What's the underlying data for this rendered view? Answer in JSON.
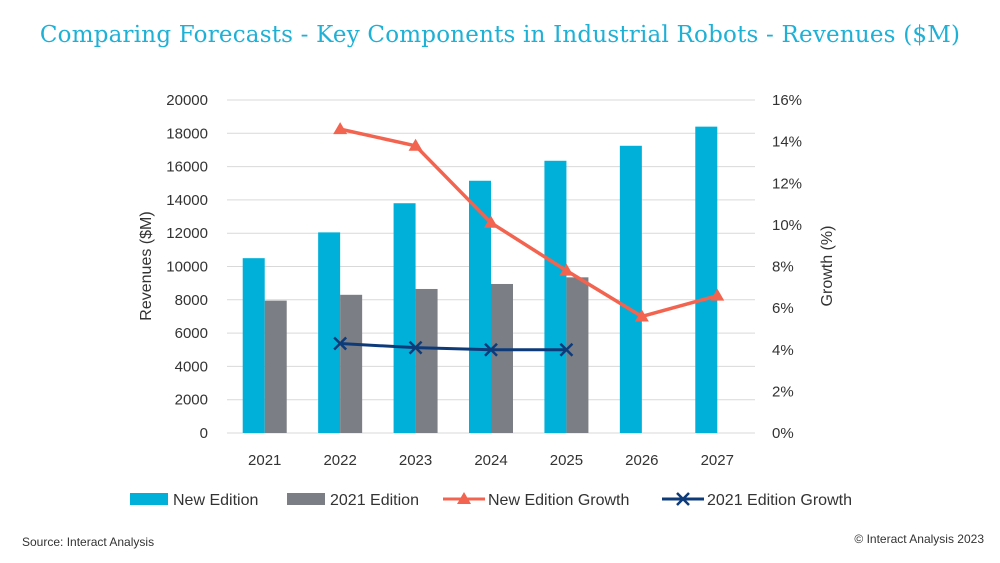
{
  "colors": {
    "title": "#1fb0d6",
    "new_edition": "#00b0d8",
    "edition_2021": "#7b7e84",
    "new_growth": "#f2644f",
    "growth_2021": "#0d3b7a",
    "grid": "#d9d9d9"
  },
  "chart_data": {
    "type": "bar",
    "title": "Comparing Forecasts - Key Components in Industrial Robots - Revenues ($M)",
    "categories": [
      "2021",
      "2022",
      "2023",
      "2024",
      "2025",
      "2026",
      "2027"
    ],
    "ylabel": "Revenues ($M)",
    "y2label": "Growth (%)",
    "ylim": [
      0,
      20000
    ],
    "y_ticks": [
      "0",
      "2000",
      "4000",
      "6000",
      "8000",
      "10000",
      "12000",
      "14000",
      "16000",
      "18000",
      "20000"
    ],
    "y2lim": [
      0,
      16
    ],
    "y2_ticks": [
      "0%",
      "2%",
      "4%",
      "6%",
      "8%",
      "10%",
      "12%",
      "14%",
      "16%"
    ],
    "grid": true,
    "legend_position": "bottom",
    "series": [
      {
        "name": "New Edition",
        "kind": "bar",
        "axis": "left",
        "values": [
          10500,
          12050,
          13800,
          15150,
          16350,
          17250,
          18400
        ]
      },
      {
        "name": "2021 Edition",
        "kind": "bar",
        "axis": "left",
        "values": [
          7950,
          8300,
          8650,
          8950,
          9350,
          null,
          null
        ]
      },
      {
        "name": "New Edition Growth",
        "kind": "line",
        "marker": "triangle",
        "axis": "right",
        "values": [
          null,
          14.6,
          13.8,
          10.1,
          7.8,
          5.6,
          6.6
        ]
      },
      {
        "name": "2021 Edition Growth",
        "kind": "line",
        "marker": "x",
        "axis": "right",
        "values": [
          null,
          4.3,
          4.1,
          4.0,
          4.0,
          null,
          null
        ]
      }
    ]
  },
  "footer": {
    "source": "Source: Interact Analysis",
    "copyright": "© Interact Analysis 2023"
  }
}
